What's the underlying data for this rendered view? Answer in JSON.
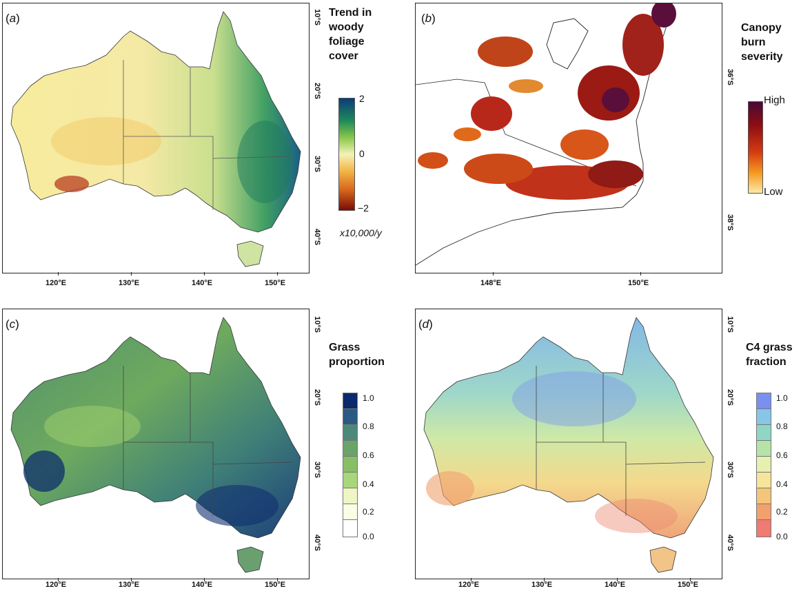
{
  "panels": {
    "a": {
      "label_open": "(",
      "label_letter": "a",
      "label_close": ")",
      "x_ticks": [
        "120°E",
        "130°E",
        "140°E",
        "150°E"
      ],
      "y_ticks": [
        "10°S",
        "20°S",
        "30°S",
        "40°S"
      ],
      "legend": {
        "title_lines": [
          "Trend in",
          "woody",
          "foliage",
          "cover"
        ],
        "labels": [
          "2",
          "0",
          "−2"
        ],
        "unit": "x10,000/y",
        "colors": [
          "#0b3b7a",
          "#1e8a5a",
          "#8ac64a",
          "#f3f2b8",
          "#f4b545",
          "#d6661b",
          "#7a0c08"
        ]
      }
    },
    "b": {
      "label_open": "(",
      "label_letter": "b",
      "label_close": ")",
      "x_ticks": [
        "148°E",
        "150°E"
      ],
      "y_ticks": [
        "36°S",
        "38°S"
      ],
      "legend": {
        "title_lines": [
          "Canopy",
          "burn",
          "severity"
        ],
        "labels": [
          "High",
          "Low"
        ],
        "colors": [
          "#4a0a38",
          "#8b0d12",
          "#d43a12",
          "#f59a20",
          "#fde9a8"
        ]
      }
    },
    "c": {
      "label_open": "(",
      "label_letter": "c",
      "label_close": ")",
      "x_ticks": [
        "120°E",
        "130°E",
        "140°E",
        "150°E"
      ],
      "y_ticks": [
        "10°S",
        "20°S",
        "30°S",
        "40°S"
      ],
      "legend": {
        "title_lines": [
          "Grass",
          "proportion"
        ],
        "labels": [
          "1.0",
          "0.8",
          "0.6",
          "0.4",
          "0.2",
          "0.0"
        ],
        "colors": [
          "#0a2a6b",
          "#2c5a82",
          "#4b8a7a",
          "#6aa46a",
          "#88bf66",
          "#a8d67a",
          "#eef6c4",
          "#fbfde4",
          "#ffffff"
        ]
      }
    },
    "d": {
      "label_open": "(",
      "label_letter": "d",
      "label_close": ")",
      "x_ticks": [
        "120°E",
        "130°E",
        "140°E",
        "150°E"
      ],
      "y_ticks": [
        "10°S",
        "20°S",
        "30°S",
        "40°S"
      ],
      "legend": {
        "title_lines": [
          "C4 grass",
          "fraction"
        ],
        "labels": [
          "1.0",
          "0.8",
          "0.6",
          "0.4",
          "0.2",
          "0.0"
        ],
        "colors": [
          "#7b8ff0",
          "#86c6e6",
          "#8fd6c4",
          "#b6e3a8",
          "#e6f0b0",
          "#f6e59a",
          "#f3c67a",
          "#f2a06e",
          "#ef7b72"
        ]
      }
    }
  }
}
